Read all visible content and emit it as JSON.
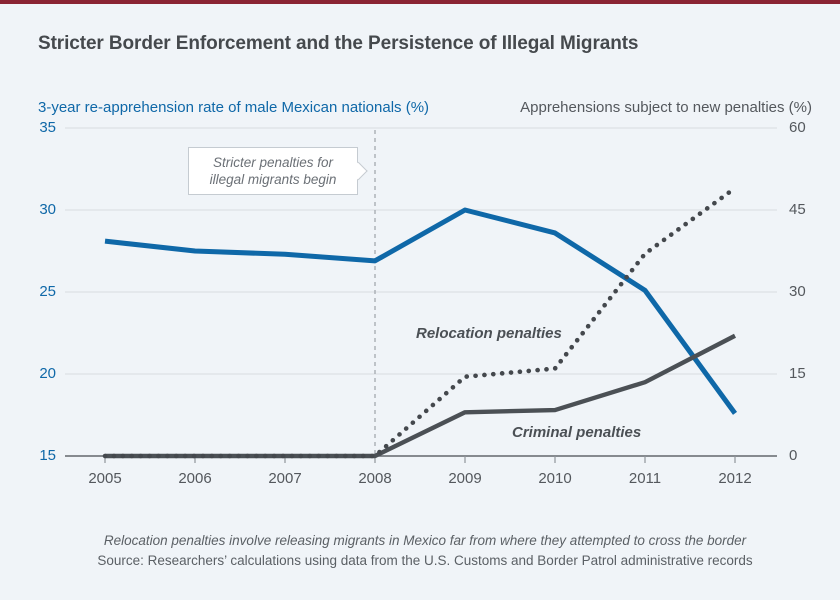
{
  "figure": {
    "title": "Stricter Border Enforcement and the Persistence of Illegal Migrants"
  },
  "chart_data": {
    "type": "line",
    "title": "Stricter Border Enforcement and the Persistence of Illegal Migrants",
    "x": [
      2005,
      2006,
      2007,
      2008,
      2009,
      2010,
      2011,
      2012
    ],
    "xlabel": "",
    "grid": true,
    "legend": "inline-labels",
    "left_axis": {
      "label": "3-year re-apprehension rate of male Mexican nationals (%)",
      "range": [
        15,
        35
      ],
      "ticks": [
        35,
        30,
        25,
        20,
        15
      ],
      "color": "#0f68a8"
    },
    "right_axis": {
      "label": "Apprehensions subject to new penalties (%)",
      "range": [
        0,
        60
      ],
      "ticks": [
        60,
        45,
        30,
        15,
        0
      ],
      "color": "#54585d"
    },
    "series": [
      {
        "id": "reapprehension",
        "name": "3-year re-apprehension rate of male Mexican nationals (%)",
        "axis": "left",
        "line": "solid",
        "color": "#0f68a8",
        "values": [
          28.1,
          27.5,
          27.3,
          26.9,
          30.0,
          28.6,
          25.1,
          17.6
        ]
      },
      {
        "id": "criminal",
        "name": "Criminal penalties",
        "axis": "right",
        "line": "solid",
        "color": "#4b5055",
        "values": [
          0,
          0,
          0,
          0,
          8,
          8.4,
          13.5,
          22
        ]
      },
      {
        "id": "relocation",
        "name": "Relocation penalties",
        "axis": "right",
        "line": "dotted",
        "color": "#44484d",
        "values": [
          0,
          0,
          0,
          0,
          14.5,
          16,
          37,
          49
        ]
      }
    ],
    "series_labels": {
      "relocation": "Relocation penalties",
      "criminal": "Criminal penalties"
    },
    "annotation": {
      "line1": "Stricter penalties for",
      "line2": "illegal migrants begin",
      "at_year": 2008
    }
  },
  "footer": {
    "note": "Relocation penalties involve releasing migrants in Mexico far from where they attempted to cross the border",
    "source": "Source: Researchers’ calculations using data from the U.S. Customs and Border Patrol administrative records"
  },
  "colors": {
    "background": "#f0f4f8",
    "top_bar": "#8a2433",
    "gridline": "#d7dbe0",
    "axis_line": "#63676c",
    "dashed_marker": "#a3a9af",
    "accent_blue": "#0f68a8"
  }
}
